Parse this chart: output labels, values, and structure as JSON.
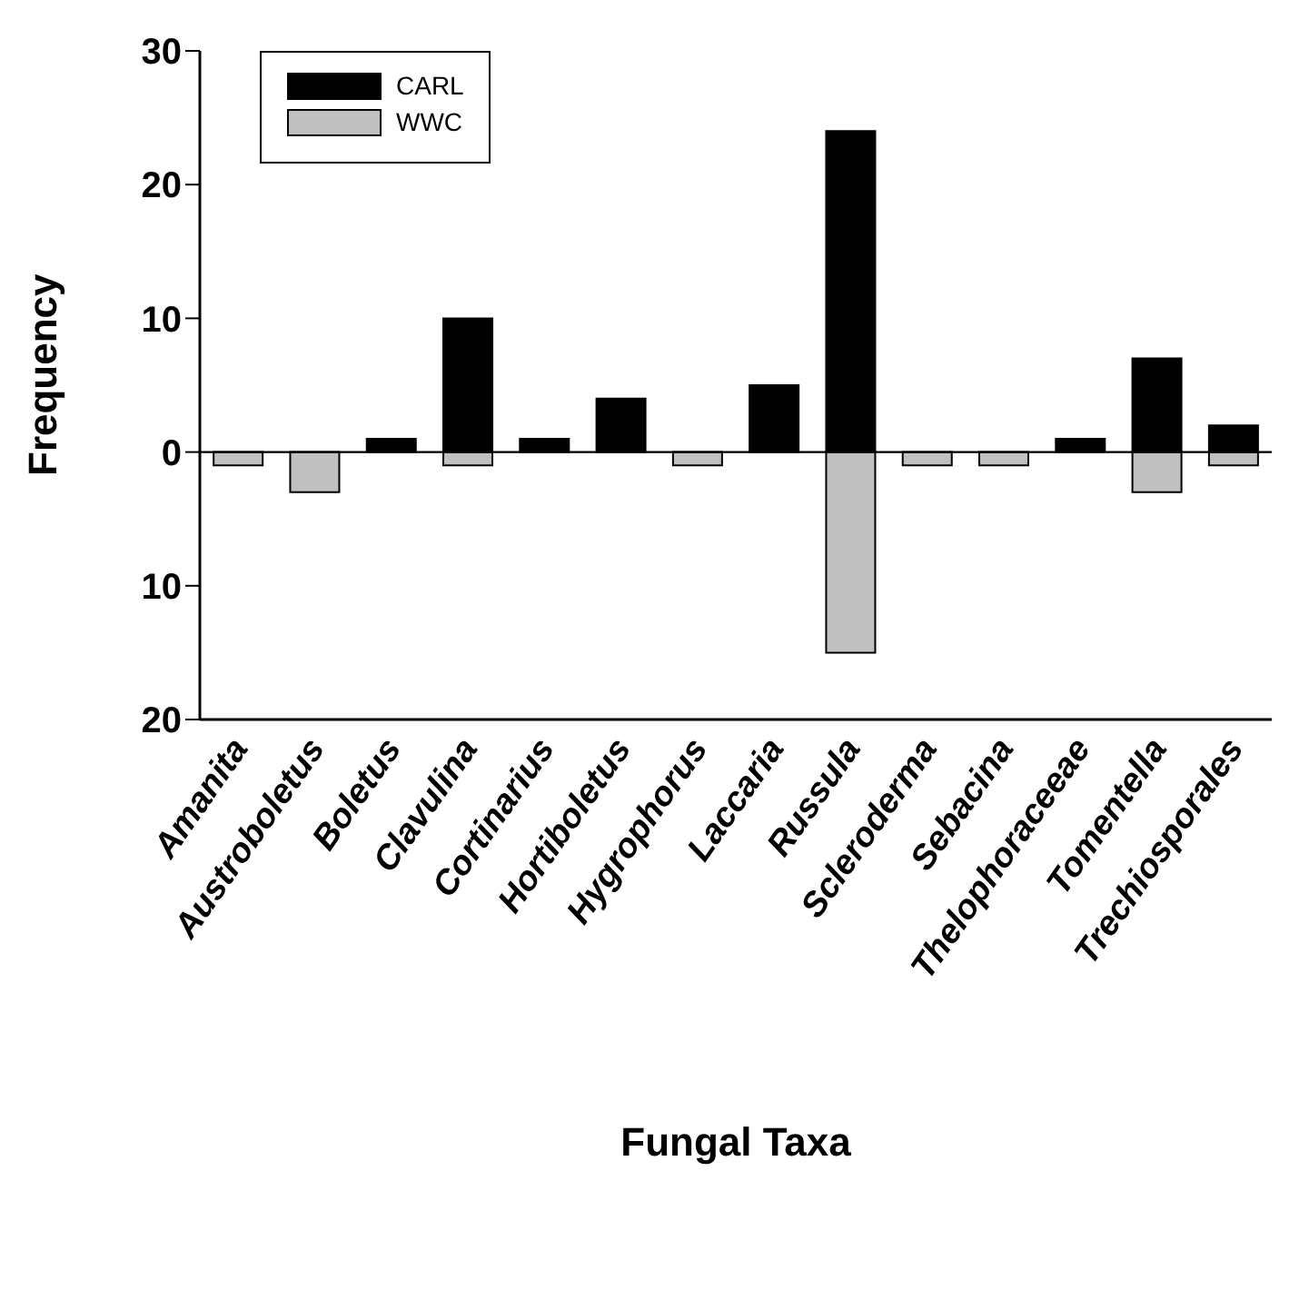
{
  "chart_data": {
    "type": "bar",
    "xlabel": "Fungal Taxa",
    "ylabel": "Frequency",
    "categories": [
      "Amanita",
      "Austroboletus",
      "Boletus",
      "Clavulina",
      "Cortinarius",
      "Hortiboletus",
      "Hygrophorus",
      "Laccaria",
      "Russula",
      "Scleroderma",
      "Sebacina",
      "Thelophoraceeae",
      "Tomentella",
      "Trechiosporales"
    ],
    "series": [
      {
        "name": "CARL",
        "color": "#000000",
        "values": [
          0,
          0,
          1,
          10,
          1,
          4,
          0,
          5,
          24,
          0,
          0,
          1,
          7,
          2
        ]
      },
      {
        "name": "WWC",
        "color": "#c0c0c0",
        "values": [
          -1,
          -3,
          0,
          -1,
          0,
          0,
          -1,
          0,
          -15,
          -1,
          -1,
          0,
          -3,
          -1
        ]
      }
    ],
    "stacked": true,
    "ylim": [
      -20,
      30
    ],
    "yticks": [
      {
        "value": -20,
        "label": "20"
      },
      {
        "value": -10,
        "label": "10"
      },
      0,
      10,
      20,
      30
    ],
    "grid": false,
    "ref_lines": [
      {
        "axis": "y",
        "value": 0
      }
    ],
    "legend": "top left"
  }
}
